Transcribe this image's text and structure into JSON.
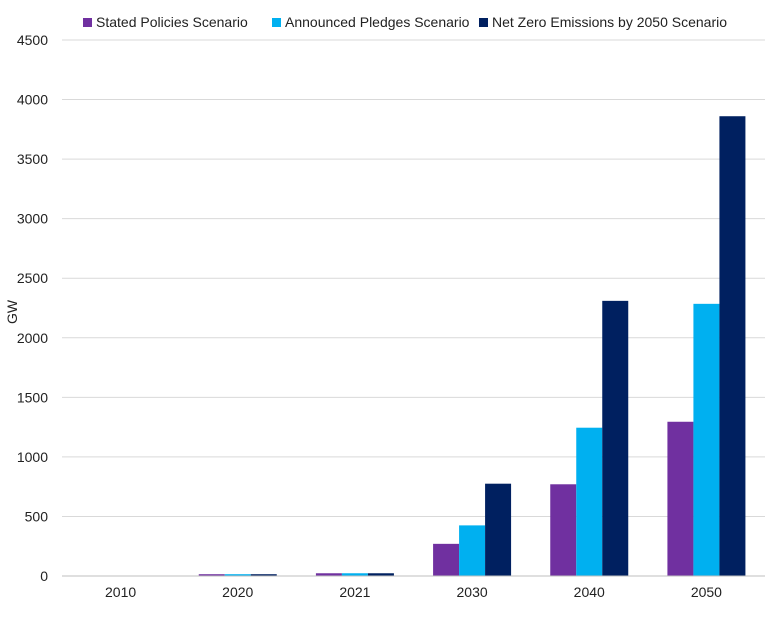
{
  "chart_data": {
    "type": "bar",
    "title": "",
    "xlabel": "",
    "ylabel": "GW",
    "ylim": [
      0,
      4500
    ],
    "yticks": [
      0,
      500,
      1000,
      1500,
      2000,
      2500,
      3000,
      3500,
      4000,
      4500
    ],
    "grid": "horizontal",
    "legend_position": "top",
    "categories": [
      "2010",
      "2020",
      "2021",
      "2030",
      "2040",
      "2050"
    ],
    "series": [
      {
        "name": "Stated Policies Scenario",
        "color": "#7030a0",
        "values": [
          0,
          15,
          23,
          270,
          770,
          1295
        ]
      },
      {
        "name": "Announced Pledges Scenario",
        "color": "#00b0f0",
        "values": [
          0,
          15,
          23,
          425,
          1245,
          2285
        ]
      },
      {
        "name": "Net Zero Emissions by 2050 Scenario",
        "color": "#002060",
        "values": [
          0,
          15,
          23,
          775,
          2310,
          3860
        ]
      }
    ]
  }
}
